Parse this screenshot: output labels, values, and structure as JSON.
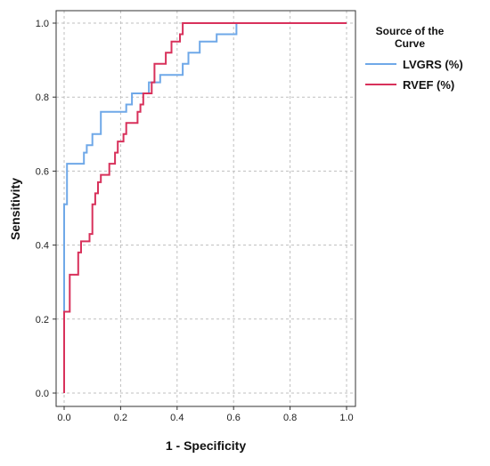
{
  "chart_data": {
    "type": "line",
    "xlabel": "1 - Specificity",
    "ylabel": "Sensitivity",
    "xlim": [
      0,
      1
    ],
    "ylim": [
      0,
      1
    ],
    "xticks": [
      "0.0",
      "0.2",
      "0.4",
      "0.6",
      "0.8",
      "1.0"
    ],
    "yticks": [
      "0.0",
      "0.2",
      "0.4",
      "0.6",
      "0.8",
      "1.0"
    ],
    "grid": true,
    "legend": {
      "title": "Source of the Curve",
      "placement": "top-right"
    },
    "series": [
      {
        "name": "LVGRS (%)",
        "color": "#6fa8e8",
        "points": [
          [
            0,
            0
          ],
          [
            0,
            0.51
          ],
          [
            0.01,
            0.51
          ],
          [
            0.01,
            0.62
          ],
          [
            0.07,
            0.62
          ],
          [
            0.07,
            0.65
          ],
          [
            0.08,
            0.65
          ],
          [
            0.08,
            0.67
          ],
          [
            0.1,
            0.67
          ],
          [
            0.1,
            0.7
          ],
          [
            0.13,
            0.7
          ],
          [
            0.13,
            0.76
          ],
          [
            0.22,
            0.76
          ],
          [
            0.22,
            0.78
          ],
          [
            0.24,
            0.78
          ],
          [
            0.24,
            0.81
          ],
          [
            0.3,
            0.81
          ],
          [
            0.3,
            0.84
          ],
          [
            0.34,
            0.84
          ],
          [
            0.34,
            0.86
          ],
          [
            0.42,
            0.86
          ],
          [
            0.42,
            0.89
          ],
          [
            0.44,
            0.89
          ],
          [
            0.44,
            0.92
          ],
          [
            0.48,
            0.92
          ],
          [
            0.48,
            0.95
          ],
          [
            0.54,
            0.95
          ],
          [
            0.54,
            0.97
          ],
          [
            0.61,
            0.97
          ],
          [
            0.61,
            1.0
          ],
          [
            1.0,
            1.0
          ]
        ]
      },
      {
        "name": "RVEF (%)",
        "color": "#d8315b",
        "points": [
          [
            0,
            0
          ],
          [
            0,
            0.22
          ],
          [
            0.02,
            0.22
          ],
          [
            0.02,
            0.32
          ],
          [
            0.05,
            0.32
          ],
          [
            0.05,
            0.38
          ],
          [
            0.06,
            0.38
          ],
          [
            0.06,
            0.41
          ],
          [
            0.09,
            0.41
          ],
          [
            0.09,
            0.43
          ],
          [
            0.1,
            0.43
          ],
          [
            0.1,
            0.51
          ],
          [
            0.11,
            0.51
          ],
          [
            0.11,
            0.54
          ],
          [
            0.12,
            0.54
          ],
          [
            0.12,
            0.57
          ],
          [
            0.13,
            0.57
          ],
          [
            0.13,
            0.59
          ],
          [
            0.16,
            0.59
          ],
          [
            0.16,
            0.62
          ],
          [
            0.18,
            0.62
          ],
          [
            0.18,
            0.65
          ],
          [
            0.19,
            0.65
          ],
          [
            0.19,
            0.68
          ],
          [
            0.21,
            0.68
          ],
          [
            0.21,
            0.7
          ],
          [
            0.22,
            0.7
          ],
          [
            0.22,
            0.73
          ],
          [
            0.26,
            0.73
          ],
          [
            0.26,
            0.76
          ],
          [
            0.27,
            0.76
          ],
          [
            0.27,
            0.78
          ],
          [
            0.28,
            0.78
          ],
          [
            0.28,
            0.81
          ],
          [
            0.31,
            0.81
          ],
          [
            0.31,
            0.84
          ],
          [
            0.32,
            0.84
          ],
          [
            0.32,
            0.89
          ],
          [
            0.36,
            0.89
          ],
          [
            0.36,
            0.92
          ],
          [
            0.38,
            0.92
          ],
          [
            0.38,
            0.95
          ],
          [
            0.41,
            0.95
          ],
          [
            0.41,
            0.97
          ],
          [
            0.42,
            0.97
          ],
          [
            0.42,
            1.0
          ],
          [
            1.0,
            1.0
          ]
        ]
      }
    ]
  }
}
